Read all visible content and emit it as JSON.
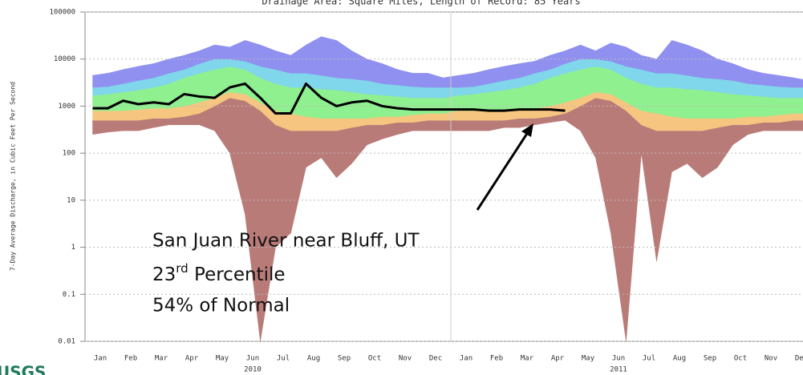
{
  "chart_data": {
    "type": "percentile-band",
    "title": "Drainage Area:  Square Miles, Length of Record: 85 Years",
    "ylabel": "7-Day Average Discharge, in Cubic Feet Per Second",
    "logo": "USGS",
    "categories": [
      "Jan",
      null,
      "Feb",
      null,
      "Mar",
      null,
      "Apr",
      null,
      "May",
      null,
      "Jun",
      null,
      "Jul",
      null,
      "Aug",
      null,
      "Sep",
      null,
      "Oct",
      null,
      "Nov",
      null,
      "Dec",
      null,
      "Jan",
      null,
      "Feb",
      null,
      "Mar",
      null,
      "Apr",
      null,
      "May",
      null,
      "Jun",
      null,
      "Jul",
      null,
      "Aug",
      null,
      "Sep",
      null,
      "Oct",
      null,
      "Nov",
      null,
      "Dec",
      null
    ],
    "years": [
      {
        "label": "2010",
        "category": 10
      },
      {
        "label": "2011",
        "category": 34
      }
    ],
    "log_scale": true,
    "grid": true,
    "ylim": [
      0.01,
      100000
    ],
    "yticks": [
      0.01,
      0.1,
      1,
      10,
      100,
      1000,
      10000,
      100000
    ],
    "series": [
      {
        "values": [
          250,
          280,
          300,
          300,
          350,
          400,
          400,
          400,
          300,
          100,
          5,
          0.01,
          1,
          2,
          50,
          80,
          30,
          60,
          150,
          200,
          250,
          300,
          300,
          300,
          300,
          300,
          300,
          350,
          350,
          400,
          450,
          500,
          300,
          80,
          2,
          0.01,
          100,
          0.5,
          40,
          60,
          30,
          50,
          150,
          250,
          300,
          300,
          300,
          300
        ]
      },
      {
        "color": "#b97b78",
        "values": [
          500,
          500,
          500,
          500,
          550,
          550,
          600,
          700,
          1000,
          1500,
          1300,
          800,
          400,
          300,
          300,
          300,
          300,
          350,
          400,
          400,
          450,
          450,
          500,
          500,
          500,
          500,
          500,
          500,
          550,
          550,
          600,
          700,
          1000,
          1500,
          1300,
          800,
          400,
          300,
          300,
          300,
          300,
          350,
          400,
          400,
          450,
          450,
          500,
          500
        ]
      },
      {
        "color": "#f6c680",
        "values": [
          800,
          800,
          800,
          850,
          900,
          900,
          1000,
          1200,
          1500,
          2000,
          1800,
          1200,
          800,
          700,
          600,
          550,
          550,
          550,
          550,
          600,
          600,
          650,
          700,
          700,
          800,
          800,
          800,
          850,
          900,
          900,
          1000,
          1200,
          1500,
          2000,
          1800,
          1200,
          800,
          700,
          600,
          550,
          550,
          550,
          550,
          600,
          600,
          650,
          700,
          700
        ]
      },
      {
        "color": "#8ff08f",
        "values": [
          1700,
          1800,
          2000,
          2200,
          2500,
          3000,
          4000,
          5000,
          6000,
          7000,
          6000,
          4000,
          3000,
          2500,
          2500,
          2300,
          2200,
          2000,
          1800,
          1700,
          1600,
          1500,
          1500,
          1500,
          1700,
          1800,
          2000,
          2200,
          2500,
          3000,
          4000,
          5000,
          6000,
          7000,
          6000,
          4000,
          3000,
          2500,
          2500,
          2300,
          2200,
          2000,
          1800,
          1700,
          1600,
          1500,
          1500,
          1500
        ]
      },
      {
        "color": "#80d6ea",
        "values": [
          2500,
          2600,
          3000,
          3500,
          4000,
          5000,
          6000,
          8000,
          10000,
          10000,
          9000,
          7000,
          6000,
          5000,
          5000,
          4500,
          4000,
          3800,
          3500,
          3000,
          2800,
          2600,
          2500,
          2500,
          2500,
          2600,
          3000,
          3500,
          4000,
          5000,
          6000,
          8000,
          10000,
          10000,
          9000,
          7000,
          6000,
          5000,
          5000,
          4500,
          4000,
          3800,
          3500,
          3000,
          2800,
          2600,
          2500,
          2500
        ]
      },
      {
        "color": "#9090f0",
        "values": [
          4500,
          5000,
          6000,
          7000,
          8000,
          10000,
          12000,
          15000,
          20000,
          18000,
          25000,
          20000,
          15000,
          12000,
          20000,
          30000,
          25000,
          15000,
          10000,
          8000,
          6000,
          5000,
          5000,
          4000,
          4500,
          5000,
          6000,
          7000,
          8000,
          9000,
          12000,
          15000,
          20000,
          15000,
          22000,
          18000,
          12000,
          10000,
          25000,
          20000,
          15000,
          10000,
          8000,
          6000,
          5000,
          4500,
          4000,
          3500
        ]
      }
    ],
    "line": {
      "color": "#000000",
      "values": [
        900,
        900,
        1300,
        1100,
        1200,
        1100,
        1800,
        1600,
        1500,
        2500,
        3000,
        1500,
        700,
        700,
        3000,
        1500,
        1000,
        1200,
        1300,
        1000,
        900,
        850,
        850,
        850,
        850,
        850,
        800,
        800,
        850,
        850,
        850,
        800,
        null,
        null,
        null,
        null,
        null,
        null,
        null,
        null,
        null,
        null,
        null,
        null,
        null,
        null,
        null,
        null
      ]
    },
    "annotations": {
      "site": "San Juan River near Bluff, UT",
      "percentile": {
        "number": "23",
        "suffix": "rd",
        "rest": " Percentile"
      },
      "normal": "54% of Normal"
    }
  }
}
